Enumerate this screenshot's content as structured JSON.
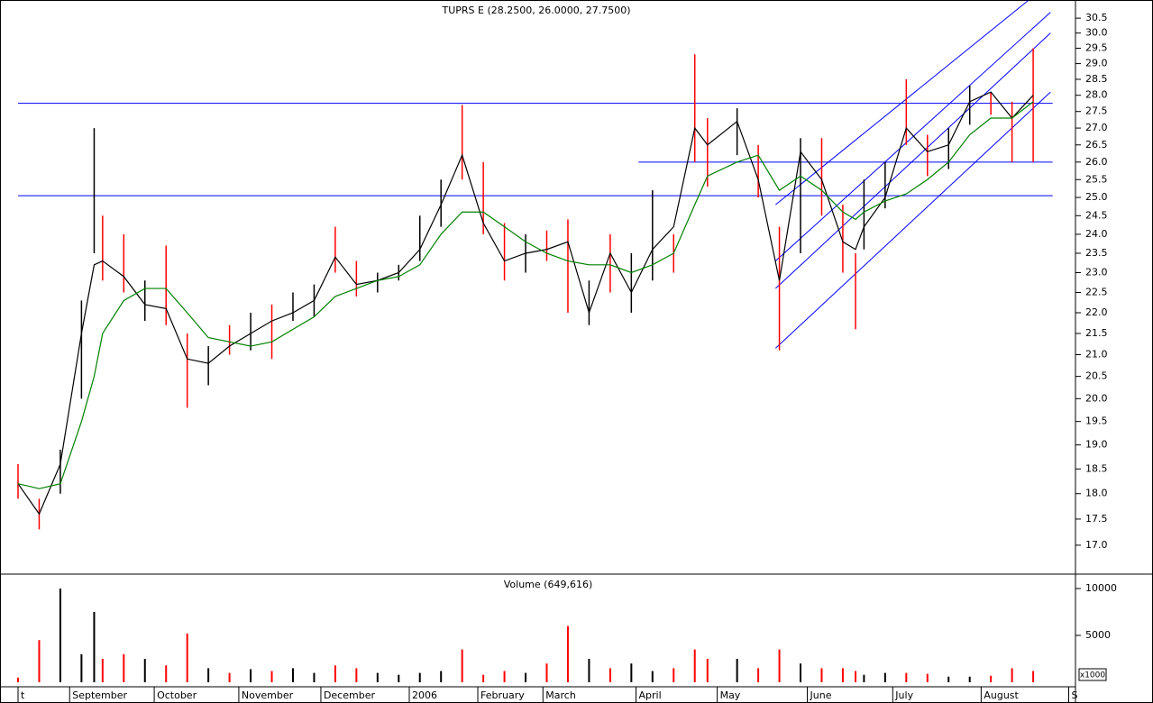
{
  "chart_data": [
    {
      "type": "hlbar",
      "title": "TUPRS E (28.2500, 26.0000, 27.7500)",
      "log_scale": true,
      "xlim": [
        0,
        250
      ],
      "ylim": [
        16.48,
        31.12
      ],
      "yticks": [
        {
          "value": 17,
          "label": "17.0"
        },
        17.5,
        {
          "value": 18,
          "label": "18.0"
        },
        18.5,
        {
          "value": 19,
          "label": "19.0"
        },
        19.5,
        {
          "value": 20,
          "label": "20.0"
        },
        20.5,
        {
          "value": 21,
          "label": "21.0"
        },
        21.5,
        {
          "value": 22,
          "label": "22.0"
        },
        22.5,
        {
          "value": 23,
          "label": "23.0"
        },
        23.5,
        {
          "value": 24,
          "label": "24.0"
        },
        24.5,
        {
          "value": 25,
          "label": "25.0"
        },
        25.5,
        {
          "value": 26,
          "label": "26.0"
        },
        26.5,
        {
          "value": 27,
          "label": "27.0"
        },
        27.5,
        {
          "value": 28,
          "label": "28.0"
        },
        28.5,
        {
          "value": 29,
          "label": "29.0"
        },
        29.5,
        {
          "value": 30,
          "label": "30.0"
        },
        30.5
      ],
      "x": [
        0,
        5,
        10,
        15,
        18,
        20,
        25,
        30,
        35,
        40,
        45,
        50,
        55,
        60,
        65,
        70,
        75,
        80,
        85,
        90,
        95,
        100,
        105,
        110,
        115,
        120,
        125,
        130,
        135,
        140,
        145,
        150,
        155,
        160,
        163,
        170,
        175,
        180,
        185,
        190,
        195,
        198,
        200,
        205,
        210,
        215,
        220,
        225,
        230,
        235,
        240
      ],
      "high": [
        18.6,
        17.9,
        18.9,
        22.3,
        27.0,
        24.5,
        24.0,
        22.8,
        23.7,
        21.5,
        21.2,
        21.7,
        22.0,
        22.2,
        22.5,
        22.7,
        24.2,
        23.3,
        23.0,
        23.2,
        24.5,
        25.5,
        27.7,
        26.0,
        24.3,
        24.0,
        24.1,
        24.4,
        22.8,
        24.0,
        23.5,
        25.2,
        24.0,
        29.3,
        27.3,
        27.6,
        26.5,
        24.2,
        26.7,
        26.7,
        24.8,
        23.5,
        25.5,
        26.0,
        28.5,
        26.8,
        27.0,
        28.3,
        28.1,
        27.8,
        29.5
      ],
      "low": [
        17.9,
        17.3,
        18.0,
        20.0,
        23.5,
        22.8,
        22.5,
        21.8,
        21.7,
        19.8,
        20.3,
        21.0,
        21.1,
        20.9,
        21.8,
        21.9,
        23.0,
        22.4,
        22.5,
        22.8,
        23.3,
        24.2,
        25.5,
        24.0,
        22.8,
        23.0,
        23.3,
        22.0,
        21.7,
        22.5,
        22.0,
        22.8,
        23.0,
        26.0,
        25.3,
        26.2,
        25.0,
        21.1,
        23.5,
        24.5,
        23.0,
        21.6,
        23.6,
        24.7,
        26.5,
        25.6,
        25.8,
        27.1,
        27.4,
        26.0,
        26.0
      ],
      "bar_colors": [
        "#ff0000",
        "#ff0000",
        "#000000",
        "#000000",
        "#000000",
        "#ff0000",
        "#ff0000",
        "#000000",
        "#ff0000",
        "#ff0000",
        "#000000",
        "#ff0000",
        "#000000",
        "#ff0000",
        "#000000",
        "#000000",
        "#ff0000",
        "#ff0000",
        "#000000",
        "#000000",
        "#000000",
        "#000000",
        "#ff0000",
        "#ff0000",
        "#ff0000",
        "#000000",
        "#ff0000",
        "#ff0000",
        "#000000",
        "#ff0000",
        "#000000",
        "#000000",
        "#ff0000",
        "#ff0000",
        "#ff0000",
        "#000000",
        "#ff0000",
        "#ff0000",
        "#000000",
        "#ff0000",
        "#ff0000",
        "#ff0000",
        "#000000",
        "#000000",
        "#ff0000",
        "#ff0000",
        "#000000",
        "#000000",
        "#ff0000",
        "#ff0000",
        "#ff0000"
      ],
      "series": [
        {
          "color": "#000000",
          "values": [
            18.2,
            17.6,
            18.6,
            21.5,
            23.2,
            23.3,
            22.9,
            22.2,
            22.1,
            20.9,
            20.8,
            21.2,
            21.5,
            21.8,
            22.0,
            22.3,
            23.4,
            22.7,
            22.8,
            23.0,
            23.6,
            24.8,
            26.2,
            24.3,
            23.3,
            23.5,
            23.6,
            23.8,
            22.0,
            23.5,
            22.5,
            23.6,
            24.2,
            27.0,
            26.5,
            27.2,
            25.5,
            22.8,
            26.3,
            25.5,
            23.8,
            23.6,
            24.2,
            25.0,
            27.0,
            26.3,
            26.5,
            27.8,
            28.1,
            27.3,
            28.0
          ]
        },
        {
          "color": "#008000",
          "values": [
            18.2,
            18.1,
            18.2,
            19.5,
            20.5,
            21.5,
            22.3,
            22.6,
            22.6,
            22.0,
            21.4,
            21.3,
            21.2,
            21.3,
            21.6,
            21.9,
            22.4,
            22.6,
            22.8,
            22.9,
            23.2,
            24.0,
            24.6,
            24.6,
            24.2,
            23.8,
            23.5,
            23.3,
            23.2,
            23.2,
            23.0,
            23.2,
            23.5,
            24.8,
            25.6,
            26.0,
            26.2,
            25.2,
            25.6,
            25.2,
            24.6,
            24.4,
            24.6,
            24.9,
            25.1,
            25.5,
            26.0,
            26.8,
            27.3,
            27.3,
            27.8
          ]
        }
      ],
      "lines_color": "#0000ff",
      "lines": [
        {
          "x": [
            0,
            244.6
          ],
          "y": [
            27.75,
            27.75
          ]
        },
        {
          "x": [
            0,
            244.6
          ],
          "y": [
            25.05,
            25.05
          ]
        },
        {
          "x": [
            146.7,
            244.6
          ],
          "y": [
            26.0,
            26.0
          ]
        },
        {
          "x": [
            179.1,
            244.1
          ],
          "y": [
            21.15,
            28.1
          ]
        },
        {
          "x": [
            179.1,
            244.1
          ],
          "y": [
            22.6,
            30.0
          ]
        },
        {
          "x": [
            179.1,
            244.1
          ],
          "y": [
            23.3,
            30.7
          ]
        },
        {
          "x": [
            179.1,
            238.8
          ],
          "y": [
            24.8,
            31.1
          ]
        }
      ]
    },
    {
      "type": "bar",
      "title": "Volume (649,616)",
      "unit_label": "x1000",
      "xlim": [
        0,
        250
      ],
      "ylim": [
        0,
        11250
      ],
      "yticks": [
        5000,
        10000
      ],
      "xticks": [
        {
          "value": 0,
          "label": "t"
        },
        {
          "value": 12.2,
          "label": "September"
        },
        {
          "value": 32.2,
          "label": "October"
        },
        {
          "value": 52.2,
          "label": "November"
        },
        {
          "value": 71.6,
          "label": "December"
        },
        {
          "value": 92.5,
          "label": "2006"
        },
        {
          "value": 108.7,
          "label": "February"
        },
        {
          "value": 124.1,
          "label": "March"
        },
        {
          "value": 146.1,
          "label": "April"
        },
        {
          "value": 165.3,
          "label": "May"
        },
        {
          "value": 186.6,
          "label": "June"
        },
        {
          "value": 206.8,
          "label": "July"
        },
        {
          "value": 227.7,
          "label": "August"
        },
        {
          "value": 248.4,
          "label": "S"
        }
      ],
      "x": [
        0,
        5,
        10,
        15,
        18,
        20,
        25,
        30,
        35,
        40,
        45,
        50,
        55,
        60,
        65,
        70,
        75,
        80,
        85,
        90,
        95,
        100,
        105,
        110,
        115,
        120,
        125,
        130,
        135,
        140,
        145,
        150,
        155,
        160,
        163,
        170,
        175,
        180,
        185,
        190,
        195,
        198,
        200,
        205,
        210,
        215,
        220,
        225,
        230,
        235,
        240
      ],
      "values": [
        500,
        4500,
        10000,
        3000,
        7500,
        2500,
        3000,
        2500,
        1800,
        5200,
        1500,
        1000,
        1400,
        1200,
        1500,
        1000,
        1800,
        1500,
        1000,
        800,
        1000,
        1200,
        3500,
        800,
        1200,
        1000,
        2000,
        6000,
        2500,
        1500,
        2000,
        1200,
        1500,
        3500,
        2500,
        2500,
        1500,
        3500,
        2000,
        1500,
        1500,
        1200,
        800,
        1000,
        1000,
        900,
        600,
        600,
        700,
        1500,
        1200
      ]
    }
  ]
}
